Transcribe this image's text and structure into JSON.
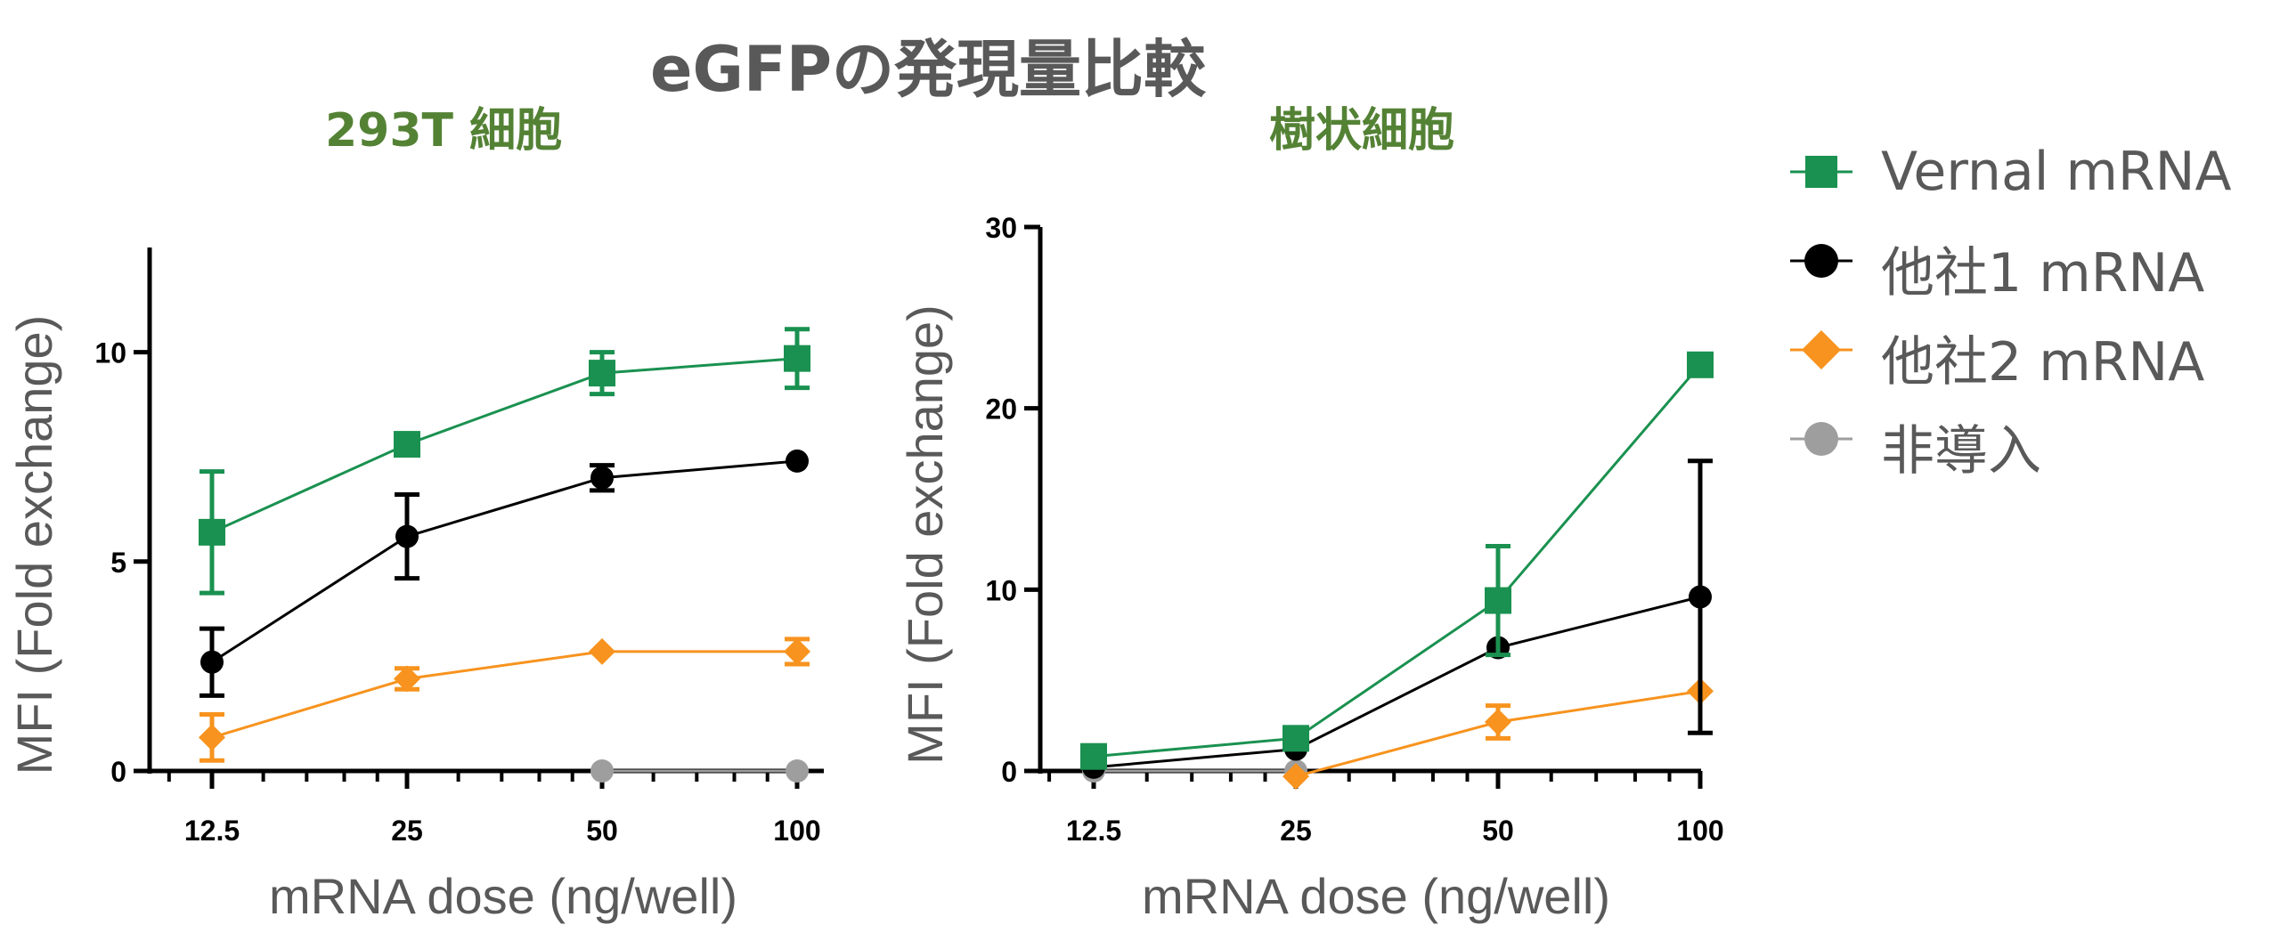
{
  "title": "eGFPの発現量比較",
  "legend": [
    {
      "label": "Vernal mRNA",
      "color": "#1a9150",
      "marker": "square"
    },
    {
      "label": "他社1 mRNA",
      "color": "#000000",
      "marker": "circle"
    },
    {
      "label": "他社2 mRNA",
      "color": "#f7931e",
      "marker": "diamond"
    },
    {
      "label": "非導入",
      "color": "#9e9e9e",
      "marker": "circle"
    }
  ],
  "chart_data": [
    {
      "type": "line",
      "title": "293T 細胞",
      "xlabel": "mRNA dose (ng/well)",
      "ylabel": "MFI (Fold exchange)",
      "x_scale": "log2",
      "x": [
        12.5,
        25,
        50,
        100
      ],
      "xtick_labels": [
        "12.5",
        "25",
        "50",
        "100"
      ],
      "ylim": [
        0,
        12.5
      ],
      "yticks": [
        0,
        5,
        10
      ],
      "ytick_labels": [
        "0",
        "5",
        "10"
      ],
      "series": [
        {
          "name": "Vernal mRNA",
          "values": [
            5.7,
            7.8,
            9.5,
            9.85
          ],
          "errors": [
            1.45,
            0.25,
            0.5,
            0.7
          ]
        },
        {
          "name": "他社1 mRNA",
          "values": [
            2.6,
            5.6,
            7.0,
            7.4
          ],
          "errors": [
            0.8,
            1.0,
            0.3,
            0
          ]
        },
        {
          "name": "他社2 mRNA",
          "values": [
            0.8,
            2.2,
            2.85,
            2.85
          ],
          "errors": [
            0.55,
            0.25,
            0,
            0.3
          ]
        },
        {
          "name": "非導入",
          "values": [
            null,
            null,
            0,
            0
          ],
          "errors": [
            0,
            0,
            0,
            0
          ]
        }
      ]
    },
    {
      "type": "line",
      "title": "樹状細胞",
      "xlabel": "mRNA dose (ng/well)",
      "ylabel": "MFI (Fold exchange)",
      "x_scale": "log2",
      "x": [
        12.5,
        25,
        50,
        100
      ],
      "xtick_labels": [
        "12.5",
        "25",
        "50",
        "100"
      ],
      "ylim": [
        0,
        30
      ],
      "yticks": [
        0,
        10,
        20,
        30
      ],
      "ytick_labels": [
        "0",
        "10",
        "20",
        "30"
      ],
      "series": [
        {
          "name": "Vernal mRNA",
          "values": [
            0.8,
            1.8,
            9.4,
            22.4
          ],
          "errors": [
            0,
            0,
            3.0,
            0
          ]
        },
        {
          "name": "他社1 mRNA",
          "values": [
            0.2,
            1.2,
            6.8,
            9.6
          ],
          "errors": [
            0,
            0,
            0,
            7.5
          ]
        },
        {
          "name": "他社2 mRNA",
          "values": [
            null,
            -0.3,
            2.7,
            4.4
          ],
          "errors": [
            0,
            0,
            0.9,
            0
          ]
        },
        {
          "name": "非導入",
          "values": [
            0,
            0,
            null,
            null
          ],
          "errors": [
            0,
            0,
            0,
            0
          ]
        }
      ]
    }
  ]
}
